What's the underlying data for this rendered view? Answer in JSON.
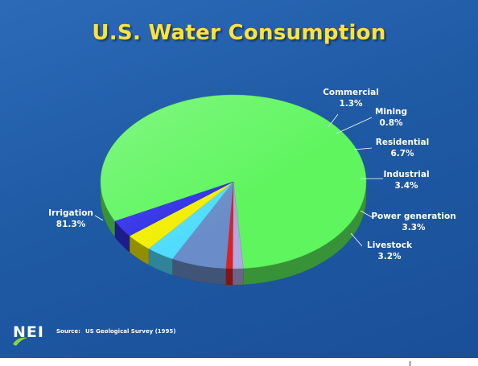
{
  "title": "U.S. Water Consumption",
  "chart_data": {
    "type": "pie",
    "title": "U.S. Water Consumption",
    "slices": [
      {
        "label": "Irrigation",
        "value": 81.3,
        "value_label": "81.3%",
        "color": "#5ef55e"
      },
      {
        "label": "Commercial",
        "value": 1.3,
        "value_label": "1.3%",
        "color": "#b0a8e0"
      },
      {
        "label": "Mining",
        "value": 0.8,
        "value_label": "0.8%",
        "color": "#e02020"
      },
      {
        "label": "Residential",
        "value": 6.7,
        "value_label": "6.7%",
        "color": "#6a8cc8"
      },
      {
        "label": "Industrial",
        "value": 3.4,
        "value_label": "3.4%",
        "color": "#4fdcff"
      },
      {
        "label": "Power generation",
        "value": 3.3,
        "value_label": "3.3%",
        "color": "#f2ee00"
      },
      {
        "label": "Livestock",
        "value": 3.2,
        "value_label": "3.2%",
        "color": "#2e2ee8"
      }
    ]
  },
  "footer": {
    "logo_text": "NEI",
    "source_prefix": "Source:",
    "source_text": "US Geological Survey (1995)"
  }
}
